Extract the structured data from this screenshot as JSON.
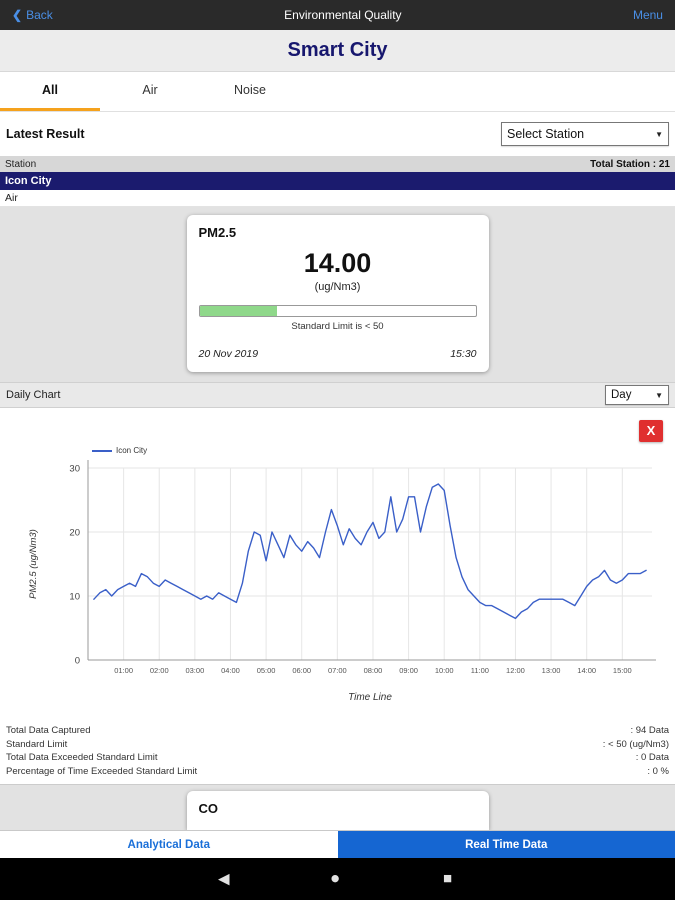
{
  "top_bar": {
    "back_icon": "❮",
    "back_label": "Back",
    "title": "Environmental Quality",
    "menu_label": "Menu"
  },
  "header": {
    "title": "Smart City"
  },
  "tabs": [
    {
      "label": "All"
    },
    {
      "label": "Air"
    },
    {
      "label": "Noise"
    }
  ],
  "latest": {
    "label": "Latest Result",
    "station_select_value": "Select Station",
    "select_arrow": "▼"
  },
  "station_table": {
    "header_left": "Station",
    "header_right": "Total Station : 21",
    "station_name": "Icon City",
    "category": "Air"
  },
  "pm_card": {
    "title": "PM2.5",
    "value": "14.00",
    "unit": "(ug/Nm3)",
    "limit_text": "Standard Limit is < 50",
    "date": "20 Nov 2019",
    "time": "15:30",
    "progress_pct": 28,
    "progress_color": "#8fd88a"
  },
  "daily_chart": {
    "label": "Daily Chart",
    "period_select_value": "Day",
    "select_arrow": "▼",
    "close_label": "X"
  },
  "chart_data": {
    "type": "line",
    "title": "",
    "xlabel": "Time Line",
    "ylabel": "PM2.5 (ug/Nm3)",
    "ylim": [
      0,
      30
    ],
    "y_ticks": [
      0,
      10,
      20,
      30
    ],
    "x_ticks": [
      "01:00",
      "02:00",
      "03:00",
      "04:00",
      "05:00",
      "06:00",
      "07:00",
      "08:00",
      "09:00",
      "10:00",
      "11:00",
      "12:00",
      "13:00",
      "14:00",
      "15:00"
    ],
    "x_start_minutes": 10,
    "x_step_minutes": 10,
    "x_axis_max_minutes": 950,
    "grid": true,
    "legend_position": "top-left",
    "series": [
      {
        "name": "Icon City",
        "color": "#3a5fc8",
        "values": [
          9.5,
          10.5,
          11,
          10,
          11,
          11.5,
          12,
          11.5,
          13.5,
          13,
          12,
          11.5,
          12.5,
          12,
          11.5,
          11,
          10.5,
          10,
          9.5,
          10,
          9.5,
          10.5,
          10,
          9.5,
          9,
          12,
          17,
          20,
          19.5,
          15.5,
          20,
          18,
          16,
          19.5,
          18,
          17,
          18.5,
          17.5,
          16,
          20,
          23.5,
          21,
          18,
          20.5,
          19,
          18,
          20,
          21.5,
          19,
          20,
          25.5,
          20,
          22,
          25.5,
          25.5,
          20,
          24,
          27,
          27.5,
          26.5,
          21,
          16,
          13,
          11,
          10,
          9,
          8.5,
          8.5,
          8,
          7.5,
          7,
          6.5,
          7.5,
          8,
          9,
          9.5,
          9.5,
          9.5,
          9.5,
          9.5,
          9,
          8.5,
          10,
          11.5,
          12.5,
          13,
          14,
          12.5,
          12,
          12.5,
          13.5,
          13.5,
          13.5,
          14
        ]
      }
    ]
  },
  "summary_rows": [
    {
      "label": "Total Data Captured",
      "value": ": 94 Data"
    },
    {
      "label": "Standard Limit",
      "value": ": < 50 (ug/Nm3)"
    },
    {
      "label": "Total Data Exceeded Standard Limit",
      "value": ": 0 Data"
    },
    {
      "label": "Percentage of Time Exceeded Standard Limit",
      "value": ": 0 %"
    }
  ],
  "co_card": {
    "title": "CO"
  },
  "bottom_bar": {
    "left_label": "Analytical Data",
    "right_label": "Real Time Data"
  },
  "android_nav": {
    "back_icon": "◀",
    "home_icon": "●",
    "recents_icon": "■"
  }
}
